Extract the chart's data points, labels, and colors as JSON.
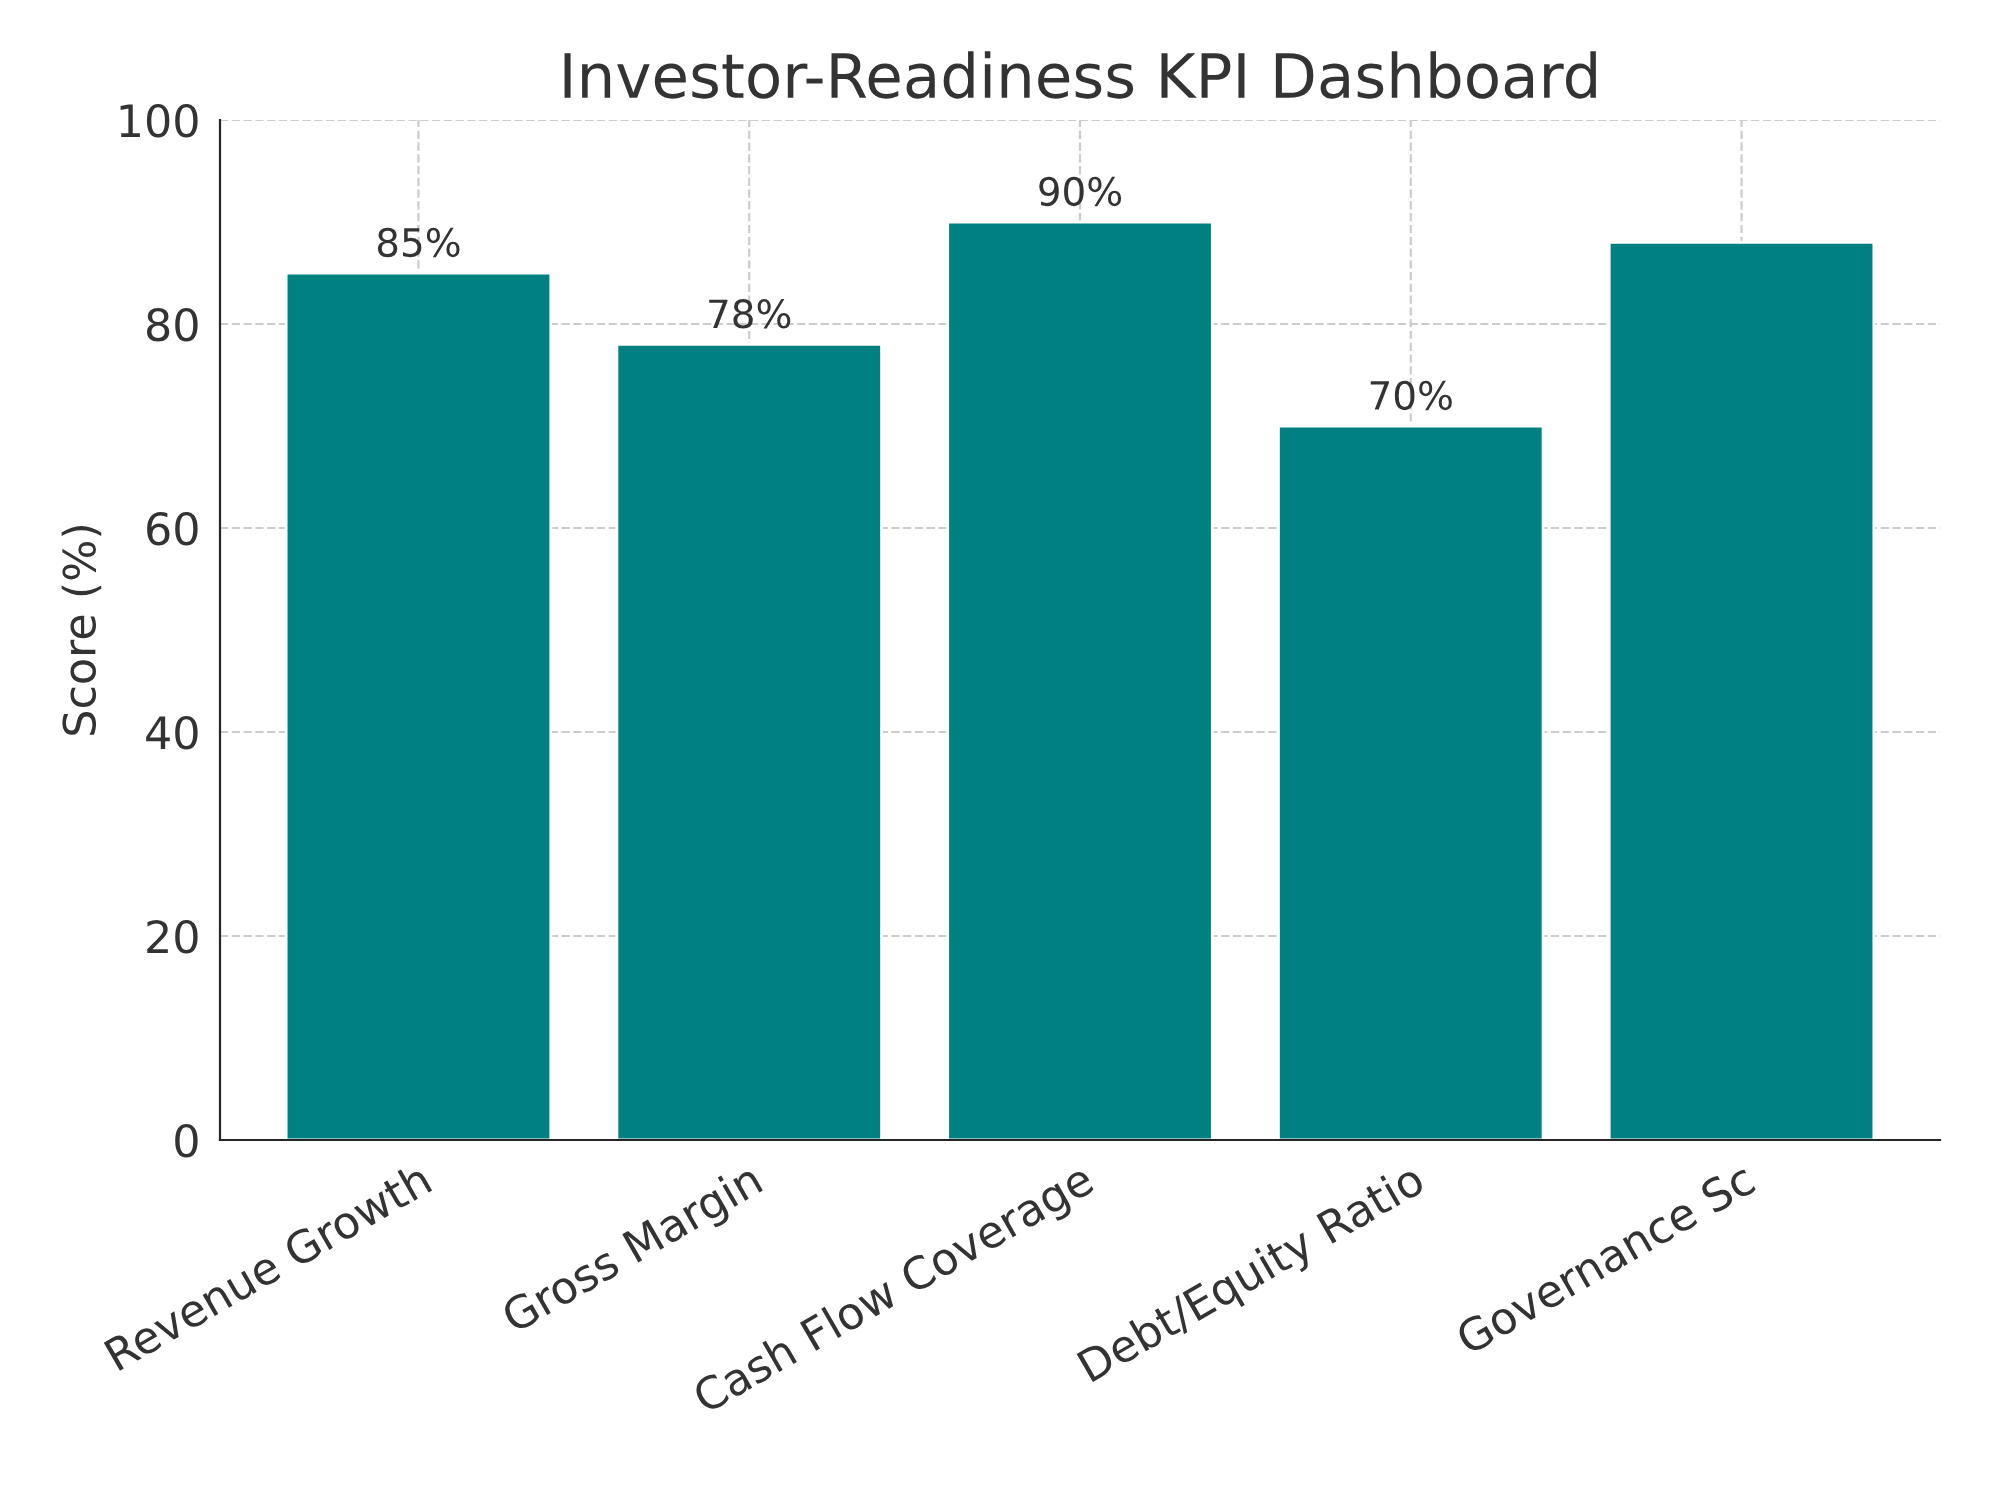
{
  "chart_data": {
    "type": "bar",
    "title": "Investor-Readiness KPI Dashboard",
    "ylabel": "Score (%)",
    "categories": [
      "Revenue Growth",
      "Gross Margin",
      "Cash Flow Coverage",
      "Debt/Equity Ratio",
      "Governance Sc"
    ],
    "values": [
      85,
      78,
      90,
      70,
      88
    ],
    "value_labels": [
      "85%",
      "78%",
      "90%",
      "70%",
      null
    ],
    "color": "#008080",
    "ylim": [
      0,
      100
    ],
    "yticks": [
      0,
      20,
      40,
      60,
      80,
      100
    ],
    "grid": true
  }
}
